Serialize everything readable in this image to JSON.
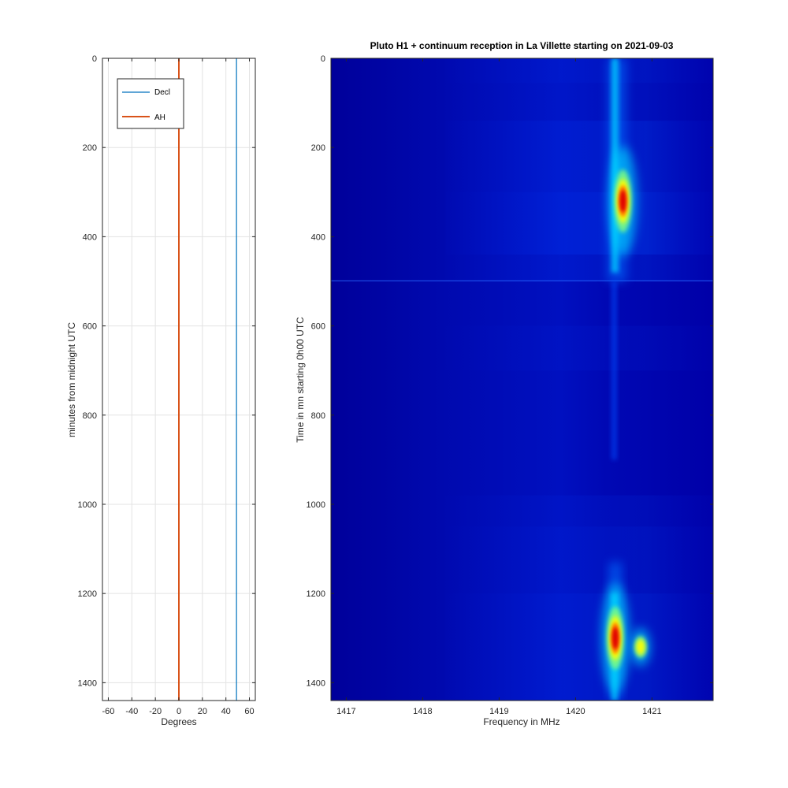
{
  "chart_data": [
    {
      "type": "line",
      "title": "",
      "xlabel": "Degrees",
      "ylabel": "minutes from midnight UTC",
      "xlim": [
        -65,
        65
      ],
      "ylim": [
        0,
        1440
      ],
      "y_reversed": true,
      "x_ticks": [
        -60,
        -40,
        -20,
        0,
        20,
        40,
        60
      ],
      "y_ticks": [
        0,
        200,
        400,
        600,
        800,
        1000,
        1200,
        1400
      ],
      "x_tick_labels": [
        "-60",
        "-40",
        "-20",
        "0",
        "20",
        "40",
        "60"
      ],
      "y_tick_labels": [
        "0",
        "200",
        "400",
        "600",
        "800",
        "1000",
        "1200",
        "1400"
      ],
      "grid": true,
      "legend_position": "top-left",
      "series": [
        {
          "name": "Decl",
          "color": "#0072bd",
          "x": [
            49,
            49
          ],
          "y": [
            0,
            1440
          ]
        },
        {
          "name": "AH",
          "color": "#d95319",
          "x": [
            0,
            0
          ],
          "y": [
            0,
            1440
          ]
        }
      ]
    },
    {
      "type": "heatmap",
      "title": "Pluto H1 + continuum reception in La Villette starting on 2021-09-03",
      "xlabel": "Frequency in MHz",
      "ylabel": "Time in mn starting 0h00 UTC",
      "xlim": [
        1416.8,
        1421.8
      ],
      "ylim": [
        0,
        1440
      ],
      "y_reversed": true,
      "x_ticks": [
        1417,
        1418,
        1419,
        1420,
        1421
      ],
      "y_ticks": [
        0,
        200,
        400,
        600,
        800,
        1000,
        1200,
        1400
      ],
      "x_tick_labels": [
        "1417",
        "1418",
        "1419",
        "1420",
        "1421"
      ],
      "y_tick_labels": [
        "0",
        "200",
        "400",
        "600",
        "800",
        "1000",
        "1200",
        "1400"
      ],
      "colormap": "jet",
      "hydrogen_line_mhz": 1420.5,
      "peaks": [
        {
          "time_min": 320,
          "freq_mhz": 1420.62,
          "level": 1.0
        },
        {
          "time_min": 1300,
          "freq_mhz": 1420.52,
          "level": 1.0
        },
        {
          "time_min": 1320,
          "freq_mhz": 1420.85,
          "level": 0.65
        }
      ]
    }
  ]
}
